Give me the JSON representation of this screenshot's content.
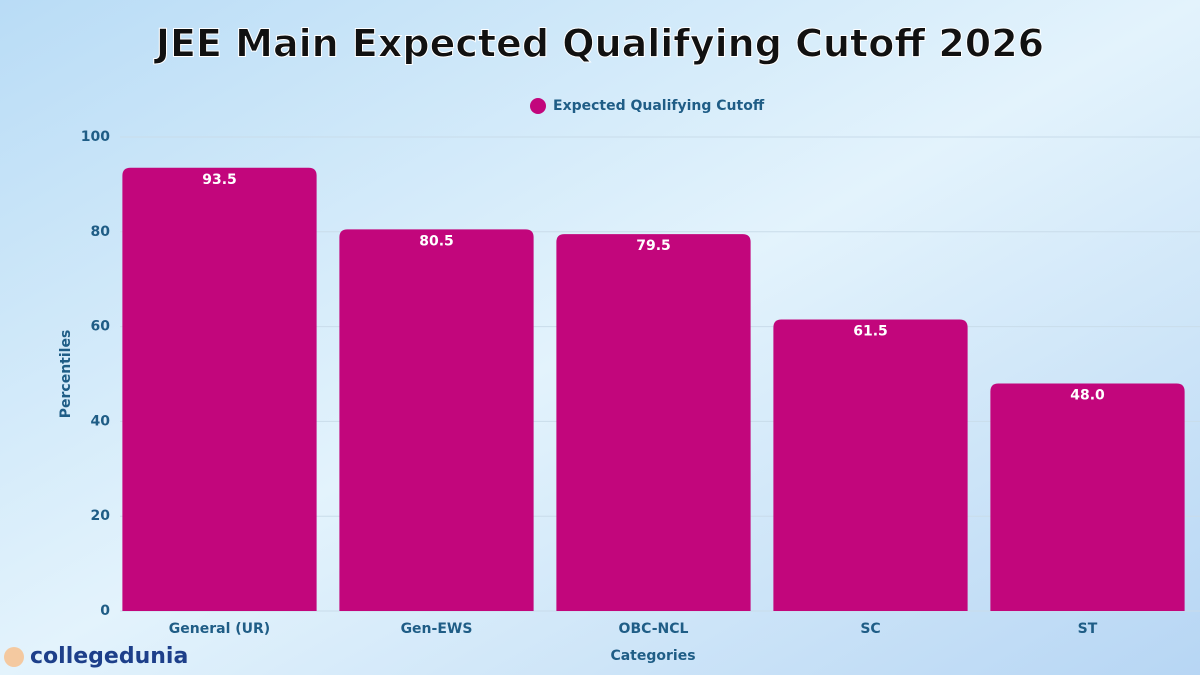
{
  "chart_data": {
    "type": "bar",
    "title": "JEE Main Expected Qualifying Cutoff 2026",
    "x_label": "Categories",
    "y_label": "Percentiles",
    "categories": [
      "General (UR)",
      "Gen-EWS",
      "OBC-NCL",
      "SC",
      "ST"
    ],
    "series": [
      {
        "name": "Expected Qualifying Cutoff",
        "color": "#c2067c",
        "values": [
          93.5,
          80.5,
          79.5,
          61.5,
          48
        ],
        "value_labels": [
          "93.5",
          "80.5",
          "79.5",
          "61.5",
          "48.0"
        ]
      }
    ],
    "ylim": [
      0,
      100
    ],
    "yticks": [
      0,
      20,
      40,
      60,
      80,
      100
    ],
    "grid": true,
    "legend": "top",
    "watermark": "collegedunia"
  }
}
